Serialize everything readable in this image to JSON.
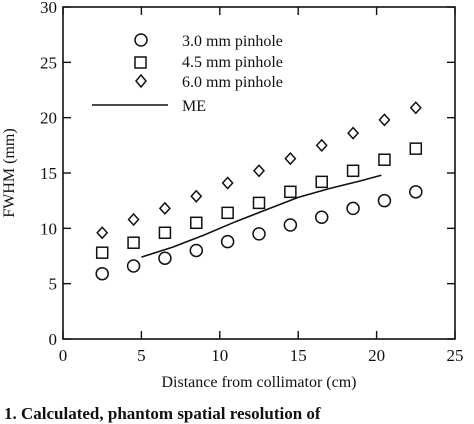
{
  "chart_data": {
    "type": "scatter",
    "title": "",
    "xlabel": "Distance from collimator (cm)",
    "ylabel": "FWHM (mm)",
    "xlim": [
      0,
      25
    ],
    "ylim": [
      0,
      30
    ],
    "xticks": [
      0,
      5,
      10,
      15,
      20,
      25
    ],
    "yticks": [
      0,
      5,
      10,
      15,
      20,
      25,
      30
    ],
    "grid": false,
    "legend_position": "top-left",
    "series": [
      {
        "name": "3.0 mm pinhole",
        "marker": "circle",
        "x": [
          2.5,
          4.5,
          6.5,
          8.5,
          10.5,
          12.5,
          14.5,
          16.5,
          18.5,
          20.5,
          22.5
        ],
        "y": [
          5.9,
          6.6,
          7.3,
          8.0,
          8.8,
          9.5,
          10.3,
          11.0,
          11.8,
          12.5,
          13.3
        ]
      },
      {
        "name": "4.5 mm pinhole",
        "marker": "square",
        "x": [
          2.5,
          4.5,
          6.5,
          8.5,
          10.5,
          12.5,
          14.5,
          16.5,
          18.5,
          20.5,
          22.5
        ],
        "y": [
          7.8,
          8.7,
          9.6,
          10.5,
          11.4,
          12.3,
          13.3,
          14.2,
          15.2,
          16.2,
          17.2
        ]
      },
      {
        "name": "6.0 mm pinhole",
        "marker": "diamond",
        "x": [
          2.5,
          4.5,
          6.5,
          8.5,
          10.5,
          12.5,
          14.5,
          16.5,
          18.5,
          20.5,
          22.5
        ],
        "y": [
          9.6,
          10.8,
          11.8,
          12.9,
          14.1,
          15.2,
          16.3,
          17.5,
          18.6,
          19.8,
          20.9
        ]
      },
      {
        "name": "ME",
        "marker": "line",
        "x": [
          5,
          7,
          9,
          11,
          13,
          15,
          17,
          19,
          20.3
        ],
        "y": [
          7.4,
          8.3,
          9.4,
          10.6,
          11.7,
          12.8,
          13.6,
          14.3,
          14.8
        ]
      }
    ]
  },
  "caption_fragment": "1. Calculated, phantom spatial resolution of"
}
